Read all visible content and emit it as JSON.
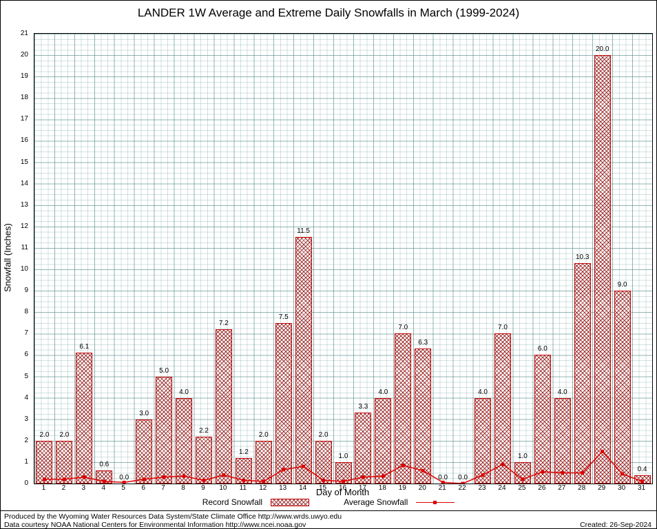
{
  "chart_data": {
    "type": "bar",
    "title": "LANDER 1W Average and Extreme Daily Snowfalls in March (1999-2024)",
    "xlabel": "Day of Month",
    "ylabel": "Snowfall (Inches)",
    "ylim": [
      0,
      21
    ],
    "ytick_step": 1,
    "grid": true,
    "legend_position": "bottom",
    "categories": [
      1,
      2,
      3,
      4,
      5,
      6,
      7,
      8,
      9,
      10,
      11,
      12,
      13,
      14,
      15,
      16,
      17,
      18,
      19,
      20,
      21,
      22,
      23,
      24,
      25,
      26,
      27,
      28,
      29,
      30,
      31
    ],
    "series": [
      {
        "name": "Record Snowfall",
        "type": "bar",
        "color": "#c00000",
        "values": [
          2.0,
          2.0,
          6.1,
          0.6,
          0.0,
          3.0,
          5.0,
          4.0,
          2.2,
          7.2,
          1.2,
          2.0,
          7.5,
          11.5,
          2.0,
          1.0,
          3.3,
          4.0,
          7.0,
          6.3,
          0.0,
          0.0,
          4.0,
          7.0,
          1.0,
          6.0,
          4.0,
          10.3,
          20.0,
          9.0,
          0.4
        ]
      },
      {
        "name": "Average Snowfall",
        "type": "line",
        "color": "#dd0000",
        "values": [
          0.2,
          0.2,
          0.3,
          0.1,
          0.05,
          0.2,
          0.3,
          0.35,
          0.15,
          0.4,
          0.15,
          0.1,
          0.65,
          0.8,
          0.15,
          0.1,
          0.3,
          0.35,
          0.85,
          0.6,
          0.05,
          0.0,
          0.4,
          0.9,
          0.2,
          0.55,
          0.5,
          0.5,
          1.5,
          0.45,
          0.1
        ]
      }
    ]
  },
  "legend": {
    "record_label": "Record Snowfall",
    "average_label": "Average Snowfall"
  },
  "footer": {
    "line1": "Produced by the Wyoming Water Resources Data System/State Climate Office http://www.wrds.uwyo.edu",
    "line2": "Data courtesy NOAA National Centers for Environmental Information http://www.ncei.noaa.gov",
    "created": "Created: 26-Sep-2024"
  }
}
